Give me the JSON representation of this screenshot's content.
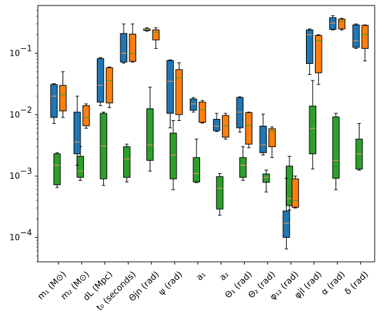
{
  "colors": {
    "blue": "#1f77b4",
    "orange": "#ff7f0e",
    "green": "#2ca02c",
    "median": "#ff9e4a",
    "median_on_orange": "#2ca02c",
    "axis": "#000000"
  },
  "chart_data": {
    "type": "box",
    "title": "",
    "xlabel": "",
    "ylabel": "",
    "yscale": "log",
    "ylim": [
      4e-05,
      0.6
    ],
    "yticks": [
      {
        "value": 0.0001,
        "base": "10",
        "exp": "−4"
      },
      {
        "value": 0.001,
        "base": "10",
        "exp": "−3"
      },
      {
        "value": 0.01,
        "base": "10",
        "exp": "−2"
      },
      {
        "value": 0.1,
        "base": "10",
        "exp": "−1"
      }
    ],
    "legend": "none",
    "grid": false,
    "categories": [
      {
        "label": "m₁ (M⊙)"
      },
      {
        "label": "m₂ (M⊙)"
      },
      {
        "label": "dL (Mpc)"
      },
      {
        "label": "t₀ (seconds)"
      },
      {
        "label": "Θjn (rad)"
      },
      {
        "label": "ψ (rad)"
      },
      {
        "label": "a₁"
      },
      {
        "label": "a₂"
      },
      {
        "label": "Θ₁ (rad)"
      },
      {
        "label": "Θ₂ (rad)"
      },
      {
        "label": "φ₁₂ (rad)"
      },
      {
        "label": "φjl (rad)"
      },
      {
        "label": "α (rad)"
      },
      {
        "label": "δ (rad)"
      }
    ],
    "series_colors": [
      "blue",
      "orange",
      "green"
    ],
    "boxes": [
      [
        {
          "min": 0.0072,
          "q1": 0.009,
          "med": 0.02,
          "q3": 0.031,
          "max": 0.032
        },
        {
          "min": 0.009,
          "q1": 0.0115,
          "med": 0.021,
          "q3": 0.03,
          "max": 0.05
        },
        {
          "min": 0.00065,
          "q1": 0.00072,
          "med": 0.0015,
          "q3": 0.0023,
          "max": 0.0024
        }
      ],
      [
        {
          "min": 0.0015,
          "q1": 0.0023,
          "med": 0.0036,
          "q3": 0.011,
          "max": 0.02
        },
        {
          "min": 0.006,
          "q1": 0.0066,
          "med": 0.009,
          "q3": 0.014,
          "max": 0.015
        },
        {
          "min": 0.00085,
          "q1": 0.00095,
          "med": 0.0012,
          "q3": 0.0021,
          "max": 0.003
        }
      ],
      [
        {
          "min": 0.014,
          "q1": 0.016,
          "med": 0.03,
          "q3": 0.082,
          "max": 0.085
        },
        {
          "min": 0.013,
          "q1": 0.0155,
          "med": 0.036,
          "q3": 0.058,
          "max": 0.06
        },
        {
          "min": 0.0007,
          "q1": 0.0009,
          "med": 0.0031,
          "q3": 0.0105,
          "max": 0.011
        }
      ],
      [
        {
          "min": 0.069,
          "q1": 0.072,
          "med": 0.1,
          "q3": 0.21,
          "max": 0.3
        },
        {
          "min": 0.072,
          "q1": 0.074,
          "med": 0.1,
          "q3": 0.205,
          "max": 0.3
        },
        {
          "min": 0.0008,
          "q1": 0.00095,
          "med": 0.0019,
          "q3": 0.003,
          "max": 0.0033
        }
      ],
      [
        {
          "min": 0.23,
          "q1": 0.235,
          "med": 0.245,
          "q3": 0.25,
          "max": 0.26
        },
        {
          "min": 0.12,
          "q1": 0.165,
          "med": 0.22,
          "q3": 0.24,
          "max": 0.26
        },
        {
          "min": 0.0012,
          "q1": 0.0018,
          "med": 0.0032,
          "q3": 0.0125,
          "max": 0.028
        }
      ],
      [
        {
          "min": 0.0061,
          "q1": 0.0105,
          "med": 0.035,
          "q3": 0.076,
          "max": 0.078
        },
        {
          "min": 0.008,
          "q1": 0.01,
          "med": 0.04,
          "q3": 0.054,
          "max": 0.07
        },
        {
          "min": 0.0006,
          "q1": 0.0009,
          "med": 0.0022,
          "q3": 0.005,
          "max": 0.008
        }
      ],
      [
        {
          "min": 0.011,
          "q1": 0.0118,
          "med": 0.015,
          "q3": 0.018,
          "max": 0.019
        },
        {
          "min": 0.0073,
          "q1": 0.0075,
          "med": 0.012,
          "q3": 0.016,
          "max": 0.017
        },
        {
          "min": 0.00078,
          "q1": 0.0008,
          "med": 0.0011,
          "q3": 0.002,
          "max": 0.004
        }
      ],
      [
        {
          "min": 0.0053,
          "q1": 0.0055,
          "med": 0.0065,
          "q3": 0.0084,
          "max": 0.0105
        },
        {
          "min": 0.004,
          "q1": 0.0043,
          "med": 0.0066,
          "q3": 0.0097,
          "max": 0.0105
        },
        {
          "min": 0.00023,
          "q1": 0.00029,
          "med": 0.00063,
          "q3": 0.00098,
          "max": 0.0011
        }
      ],
      [
        {
          "min": 0.0052,
          "q1": 0.0061,
          "med": 0.011,
          "q3": 0.019,
          "max": 0.0195
        },
        {
          "min": 0.0029,
          "q1": 0.0033,
          "med": 0.0067,
          "q3": 0.0108,
          "max": 0.011
        },
        {
          "min": 0.00085,
          "q1": 0.00095,
          "med": 0.0015,
          "q3": 0.002,
          "max": 0.003
        }
      ],
      [
        {
          "min": 0.0022,
          "q1": 0.0024,
          "med": 0.0032,
          "q3": 0.0065,
          "max": 0.0102
        },
        {
          "min": 0.002,
          "q1": 0.003,
          "med": 0.0054,
          "q3": 0.0059,
          "max": 0.0063
        },
        {
          "min": 0.00055,
          "q1": 0.00079,
          "med": 0.00095,
          "q3": 0.00108,
          "max": 0.00125
        }
      ],
      [
        {
          "min": 6.5e-05,
          "q1": 0.0001,
          "med": 0.00017,
          "q3": 0.00027,
          "max": 0.00092
        },
        {
          "min": 0.0003,
          "q1": 0.00031,
          "med": 0.0004,
          "q3": 0.0009,
          "max": 0.001
        },
        {
          "min": 0.00028,
          "q1": 0.00033,
          "med": 0.00043,
          "q3": 0.00145,
          "max": 0.0021
        }
      ],
      [
        {
          "min": 0.045,
          "q1": 0.068,
          "med": 0.2,
          "q3": 0.24,
          "max": 0.25
        },
        {
          "min": 0.031,
          "q1": 0.048,
          "med": 0.16,
          "q3": 0.195,
          "max": 0.2
        },
        {
          "min": 0.0013,
          "q1": 0.0023,
          "med": 0.006,
          "q3": 0.0138,
          "max": 0.036
        }
      ],
      [
        {
          "min": 0.24,
          "q1": 0.245,
          "med": 0.31,
          "q3": 0.38,
          "max": 0.41
        },
        {
          "min": 0.24,
          "q1": 0.25,
          "med": 0.33,
          "q3": 0.36,
          "max": 0.37
        },
        {
          "min": 0.0006,
          "q1": 0.00092,
          "med": 0.0018,
          "q3": 0.0092,
          "max": 0.0105
        }
      ],
      [
        {
          "min": 0.12,
          "q1": 0.125,
          "med": 0.16,
          "q3": 0.29,
          "max": 0.3
        },
        {
          "min": 0.075,
          "q1": 0.12,
          "med": 0.2,
          "q3": 0.285,
          "max": 0.29
        },
        {
          "min": 0.00125,
          "q1": 0.0013,
          "med": 0.0023,
          "q3": 0.004,
          "max": 0.0072
        }
      ]
    ]
  }
}
